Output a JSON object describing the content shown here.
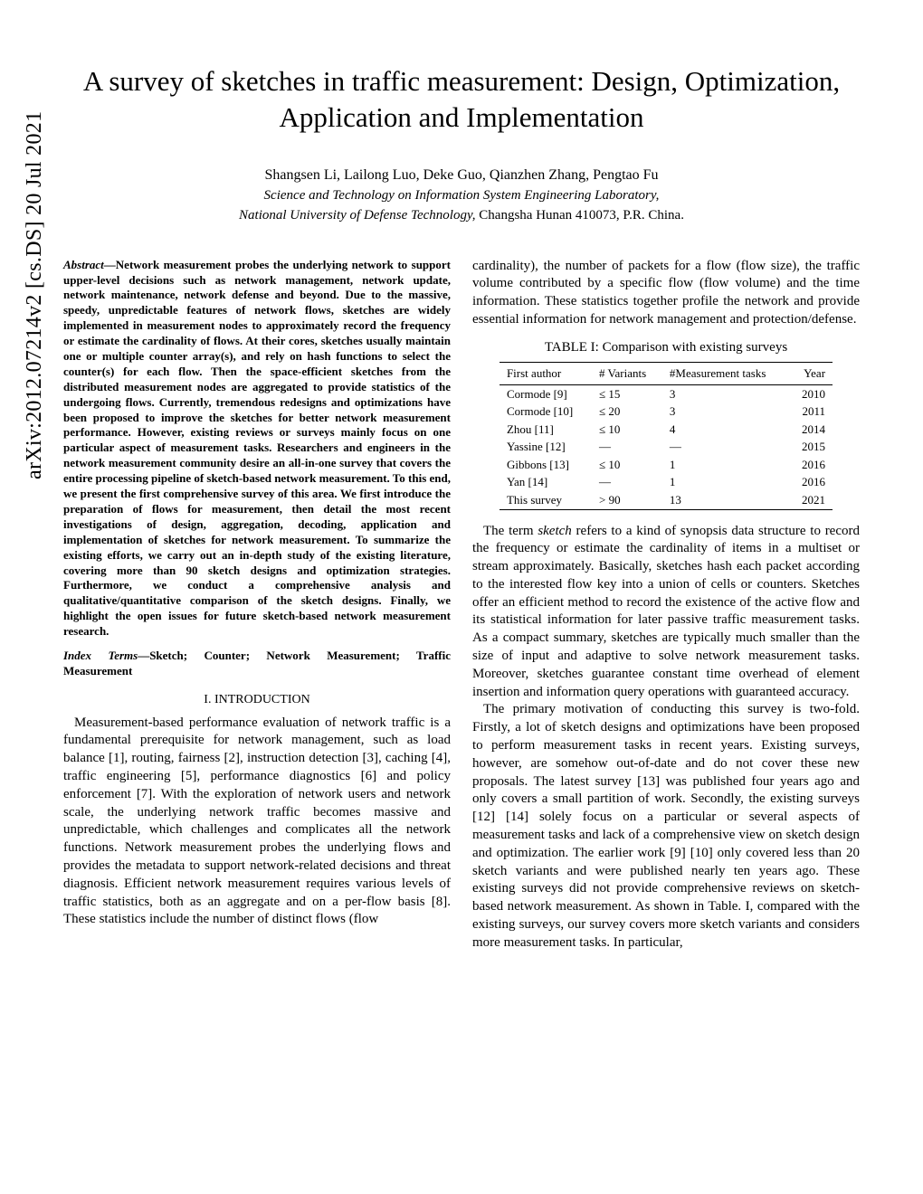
{
  "arxiv_id": "arXiv:2012.07214v2  [cs.DS]  20 Jul 2021",
  "title": "A survey of sketches in traffic measurement: Design, Optimization, Application and Implementation",
  "authors": "Shangsen Li, Lailong Luo, Deke Guo, Qianzhen Zhang, Pengtao Fu",
  "affiliation_line1": "Science and Technology on Information System Engineering Laboratory,",
  "affiliation_line2_italic": "National University of Defense Technology,",
  "affiliation_line2_rest": " Changsha Hunan 410073, P.R. China.",
  "abstract_label": "Abstract",
  "abstract_body": "—Network measurement probes the underlying network to support upper-level decisions such as network management, network update, network maintenance, network defense and beyond. Due to the massive, speedy, unpredictable features of network flows, sketches are widely implemented in measurement nodes to approximately record the frequency or estimate the cardinality of flows. At their cores, sketches usually maintain one or multiple counter array(s), and rely on hash functions to select the counter(s) for each flow. Then the space-efficient sketches from the distributed measurement nodes are aggregated to provide statistics of the undergoing flows. Currently, tremendous redesigns and optimizations have been proposed to improve the sketches for better network measurement performance. However, existing reviews or surveys mainly focus on one particular aspect of measurement tasks. Researchers and engineers in the network measurement community desire an all-in-one survey that covers the entire processing pipeline of sketch-based network measurement. To this end, we present the first comprehensive survey of this area. We first introduce the preparation of flows for measurement, then detail the most recent investigations of design, aggregation, decoding, application and implementation of sketches for network measurement. To summarize the existing efforts, we carry out an in-depth study of the existing literature, covering more than 90 sketch designs and optimization strategies. Furthermore, we conduct a comprehensive analysis and qualitative/quantitative comparison of the sketch designs. Finally, we highlight the open issues for future sketch-based network measurement research.",
  "index_terms_label": "Index Terms",
  "index_terms_body": "—Sketch; Counter; Network Measurement; Traffic Measurement",
  "section_intro": "I.  INTRODUCTION",
  "intro_para": "Measurement-based performance evaluation of network traffic is a fundamental prerequisite for network management, such as load balance [1], routing, fairness [2], instruction detection [3], caching [4], traffic engineering [5], performance diagnostics [6] and policy enforcement [7]. With the exploration of network users and network scale, the underlying network traffic becomes massive and unpredictable, which challenges and complicates all the network functions. Network measurement probes the underlying flows and provides the metadata to support network-related decisions and threat diagnosis. Efficient network measurement requires various levels of traffic statistics, both as an aggregate and on a per-flow basis [8]. These statistics include the number of distinct flows (flow",
  "right_para1": "cardinality), the number of packets for a flow (flow size), the traffic volume contributed by a specific flow (flow volume) and the time information. These statistics together profile the network and provide essential information for network management and protection/defense.",
  "table_caption": "TABLE I: Comparison with existing surveys",
  "table": {
    "columns": [
      "First author",
      "# Variants",
      "#Measurement tasks",
      "Year"
    ],
    "rows": [
      [
        "Cormode [9]",
        "≤ 15",
        "3",
        "2010"
      ],
      [
        "Cormode [10]",
        "≤ 20",
        "3",
        "2011"
      ],
      [
        "Zhou [11]",
        "≤ 10",
        "4",
        "2014"
      ],
      [
        "Yassine [12]",
        "—",
        "—",
        "2015"
      ],
      [
        "Gibbons [13]",
        "≤ 10",
        "1",
        "2016"
      ],
      [
        "Yan [14]",
        "—",
        "1",
        "2016"
      ],
      [
        "This survey",
        "> 90",
        "13",
        "2021"
      ]
    ]
  },
  "right_para2_pre": "The term ",
  "right_para2_term": "sketch",
  "right_para2_post": " refers to a kind of synopsis data structure to record the frequency or estimate the cardinality of items in a multiset or stream approximately. Basically, sketches hash each packet according to the interested flow key into a union of cells or counters. Sketches offer an efficient method to record the existence of the active flow and its statistical information for later passive traffic measurement tasks. As a compact summary, sketches are typically much smaller than the size of input and adaptive to solve network measurement tasks. Moreover, sketches guarantee constant time overhead of element insertion and information query operations with guaranteed accuracy.",
  "right_para3": "The primary motivation of conducting this survey is two-fold. Firstly, a lot of sketch designs and optimizations have been proposed to perform measurement tasks in recent years. Existing surveys, however, are somehow out-of-date and do not cover these new proposals. The latest survey [13] was published four years ago and only covers a small partition of work. Secondly, the existing surveys [12] [14] solely focus on a particular or several aspects of measurement tasks and lack of a comprehensive view on sketch design and optimization. The earlier work [9] [10] only covered less than 20 sketch variants and were published nearly ten years ago. These existing surveys did not provide comprehensive reviews on sketch-based network measurement. As shown in Table. I, compared with the existing surveys, our survey covers more sketch variants and considers more measurement tasks. In particular,"
}
